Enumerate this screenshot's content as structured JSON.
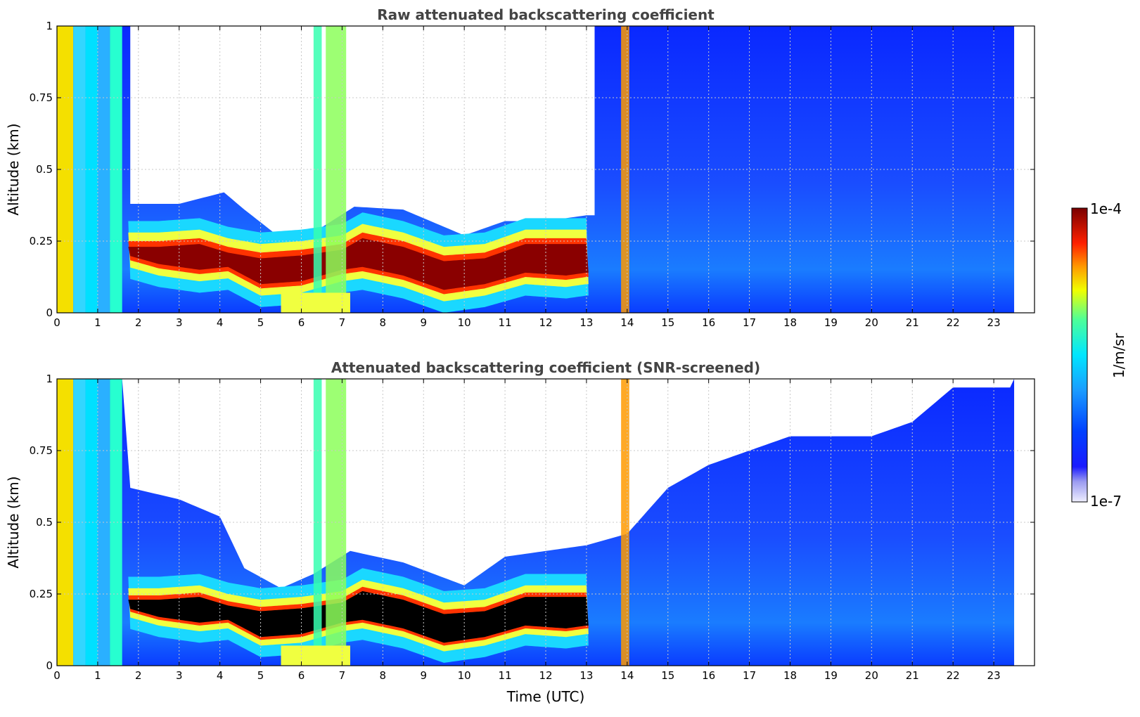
{
  "chart_data": [
    {
      "type": "heatmap",
      "title": "Raw attenuated backscattering coefficient",
      "xlabel": "",
      "ylabel": "Altitude (km)",
      "xlim": [
        0,
        24
      ],
      "ylim": [
        0,
        1
      ],
      "xticks": [
        "0",
        "1",
        "2",
        "3",
        "4",
        "5",
        "6",
        "7",
        "8",
        "9",
        "10",
        "11",
        "12",
        "13",
        "14",
        "15",
        "16",
        "17",
        "18",
        "19",
        "20",
        "21",
        "22",
        "23"
      ],
      "yticks": [
        "0",
        "0.25",
        "0.5",
        "0.75",
        "1"
      ],
      "grid": true,
      "data_end_time": 23.5,
      "features": {
        "boundary_layer_top_km": [
          [
            1.75,
            0.23
          ],
          [
            2.5,
            0.23
          ],
          [
            3.5,
            0.24
          ],
          [
            4.2,
            0.21
          ],
          [
            5,
            0.19
          ],
          [
            6,
            0.2
          ],
          [
            7,
            0.22
          ],
          [
            7.5,
            0.26
          ],
          [
            8.5,
            0.23
          ],
          [
            9.5,
            0.18
          ],
          [
            10.5,
            0.19
          ],
          [
            11.5,
            0.24
          ],
          [
            12.5,
            0.24
          ],
          [
            13,
            0.24
          ]
        ],
        "boundary_layer_bottom_km": [
          [
            1.75,
            0.2
          ],
          [
            2.5,
            0.17
          ],
          [
            3.5,
            0.15
          ],
          [
            4.2,
            0.16
          ],
          [
            5,
            0.1
          ],
          [
            6,
            0.11
          ],
          [
            7,
            0.15
          ],
          [
            7.5,
            0.16
          ],
          [
            8.5,
            0.13
          ],
          [
            9.5,
            0.08
          ],
          [
            10.5,
            0.1
          ],
          [
            11.5,
            0.14
          ],
          [
            12.5,
            0.13
          ],
          [
            13,
            0.14
          ]
        ],
        "fog_top_km": [
          [
            1.9,
            0.38
          ],
          [
            3,
            0.38
          ],
          [
            4.1,
            0.42
          ],
          [
            4.6,
            0.36
          ],
          [
            5.5,
            0.26
          ],
          [
            6.3,
            0.28
          ],
          [
            7.3,
            0.37
          ],
          [
            8.5,
            0.36
          ],
          [
            10,
            0.27
          ],
          [
            11,
            0.32
          ],
          [
            12,
            0.32
          ],
          [
            13,
            0.34
          ]
        ]
      }
    },
    {
      "type": "heatmap",
      "title": "Attenuated backscattering coefficient (SNR-screened)",
      "xlabel": "Time (UTC)",
      "ylabel": "Altitude (km)",
      "xlim": [
        0,
        24
      ],
      "ylim": [
        0,
        1
      ],
      "xticks": [
        "0",
        "1",
        "2",
        "3",
        "4",
        "5",
        "6",
        "7",
        "8",
        "9",
        "10",
        "11",
        "12",
        "13",
        "14",
        "15",
        "16",
        "17",
        "18",
        "19",
        "20",
        "21",
        "22",
        "23"
      ],
      "yticks": [
        "0",
        "0.25",
        "0.5",
        "0.75",
        "1"
      ],
      "grid": true,
      "data_end_time": 23.5,
      "screened_top_km": [
        [
          0,
          1
        ],
        [
          1.6,
          1
        ],
        [
          1.8,
          0.62
        ],
        [
          3,
          0.58
        ],
        [
          4,
          0.52
        ],
        [
          4.6,
          0.34
        ],
        [
          5.5,
          0.27
        ],
        [
          6.3,
          0.32
        ],
        [
          7.2,
          0.4
        ],
        [
          8.5,
          0.36
        ],
        [
          10,
          0.28
        ],
        [
          11,
          0.38
        ],
        [
          12,
          0.4
        ],
        [
          13,
          0.42
        ],
        [
          14,
          0.46
        ],
        [
          15,
          0.62
        ],
        [
          16,
          0.7
        ],
        [
          18,
          0.8
        ],
        [
          20,
          0.8
        ],
        [
          21,
          0.85
        ],
        [
          22,
          0.97
        ],
        [
          23.5,
          0.97
        ]
      ]
    }
  ],
  "colorbar": {
    "label": "1/m/sr",
    "min_label": "1e-7",
    "max_label": "1e-4",
    "scale": "log",
    "colormap": [
      "#ffffff",
      "#0000ff",
      "#1c8cff",
      "#00ffff",
      "#ffff00",
      "#ff7f00",
      "#ff0000",
      "#7f0000"
    ]
  }
}
